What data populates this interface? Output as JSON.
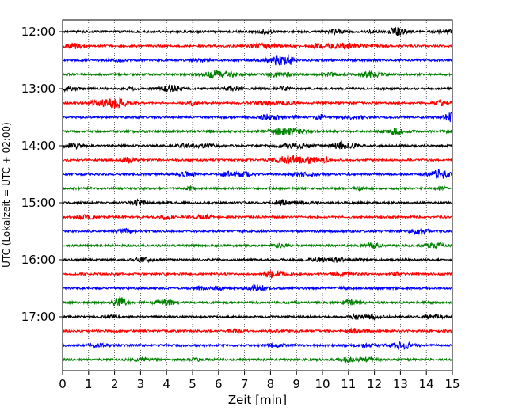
{
  "chart_data": {
    "type": "line",
    "title": "",
    "xlabel": "Zeit  [min]",
    "ylabel": "UTC (Lokalzeit = UTC + 02:00)",
    "xlim": [
      0,
      15
    ],
    "x_ticks": [
      0,
      1,
      2,
      3,
      4,
      5,
      6,
      7,
      8,
      9,
      10,
      11,
      12,
      13,
      14,
      15
    ],
    "x_tick_labels": [
      "0",
      "1",
      "2",
      "3",
      "4",
      "5",
      "6",
      "7",
      "8",
      "9",
      "10",
      "11",
      "12",
      "13",
      "14",
      "15"
    ],
    "y_time_start": "12:00",
    "y_time_end": "17:45",
    "trace_interval_minutes": 15,
    "y_ticks": [
      "12:00",
      "13:00",
      "14:00",
      "15:00",
      "16:00",
      "17:00"
    ],
    "grid": "vertical dotted lines at each minute",
    "legend": "none",
    "trace_colors": [
      "#000000",
      "#ff0000",
      "#0000ff",
      "#008000"
    ],
    "traces": [
      {
        "start": "12:00",
        "color": "#000000"
      },
      {
        "start": "12:15",
        "color": "#ff0000"
      },
      {
        "start": "12:30",
        "color": "#0000ff"
      },
      {
        "start": "12:45",
        "color": "#008000"
      },
      {
        "start": "13:00",
        "color": "#000000"
      },
      {
        "start": "13:15",
        "color": "#ff0000"
      },
      {
        "start": "13:30",
        "color": "#0000ff"
      },
      {
        "start": "13:45",
        "color": "#008000"
      },
      {
        "start": "14:00",
        "color": "#000000"
      },
      {
        "start": "14:15",
        "color": "#ff0000"
      },
      {
        "start": "14:30",
        "color": "#0000ff"
      },
      {
        "start": "14:45",
        "color": "#008000"
      },
      {
        "start": "15:00",
        "color": "#000000"
      },
      {
        "start": "15:15",
        "color": "#ff0000"
      },
      {
        "start": "15:30",
        "color": "#0000ff"
      },
      {
        "start": "15:45",
        "color": "#008000"
      },
      {
        "start": "16:00",
        "color": "#000000"
      },
      {
        "start": "16:15",
        "color": "#ff0000"
      },
      {
        "start": "16:30",
        "color": "#0000ff"
      },
      {
        "start": "16:45",
        "color": "#008000"
      },
      {
        "start": "17:00",
        "color": "#000000"
      },
      {
        "start": "17:15",
        "color": "#ff0000"
      },
      {
        "start": "17:30",
        "color": "#0000ff"
      },
      {
        "start": "17:45",
        "color": "#008000"
      }
    ]
  }
}
